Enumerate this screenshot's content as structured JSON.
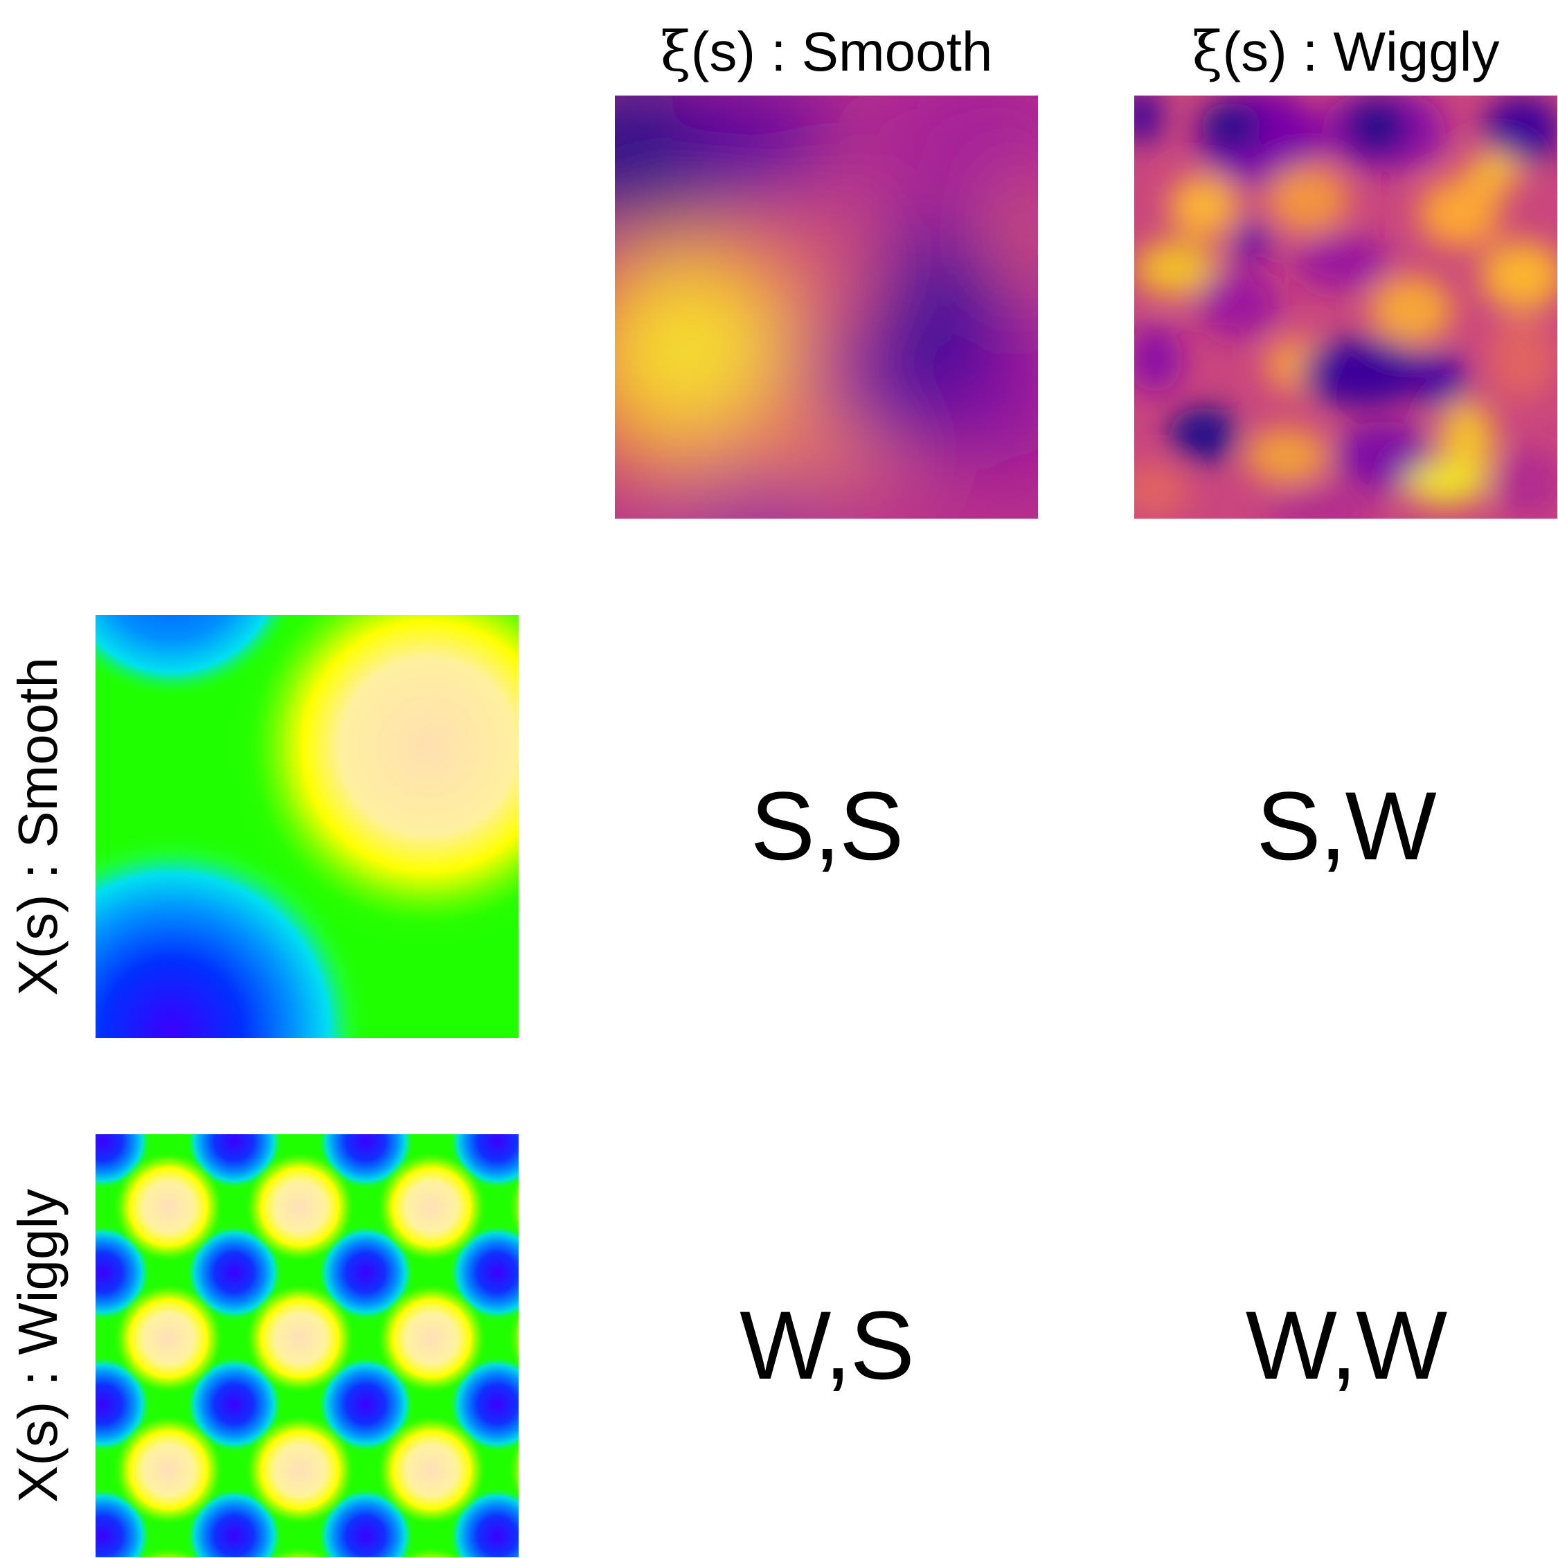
{
  "columns": [
    {
      "symbol": "ξ",
      "title": "(s) : Smooth"
    },
    {
      "symbol": "ξ",
      "title": "(s) : Wiggly"
    }
  ],
  "rows": [
    {
      "title": "X(s) : Smooth"
    },
    {
      "title": "X(s) : Wiggly"
    }
  ],
  "cells": [
    [
      "S,S",
      "S,W"
    ],
    [
      "W,S",
      "W,W"
    ]
  ],
  "colors": {
    "xi_palette": [
      "#0d0887",
      "#6a00a8",
      "#b12a90",
      "#e16462",
      "#fca636",
      "#f0f921"
    ],
    "x_palette": [
      "#3a00ff",
      "#0070ff",
      "#00d0ff",
      "#20ff00",
      "#ffff00",
      "#ffdfa0"
    ]
  }
}
